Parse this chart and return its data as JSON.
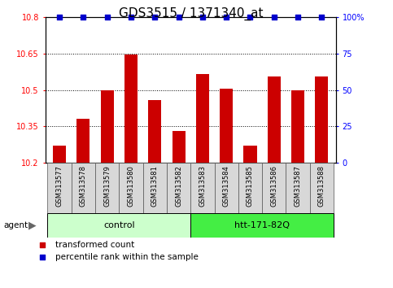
{
  "title": "GDS3515 / 1371340_at",
  "samples": [
    "GSM313577",
    "GSM313578",
    "GSM313579",
    "GSM313580",
    "GSM313581",
    "GSM313582",
    "GSM313583",
    "GSM313584",
    "GSM313585",
    "GSM313586",
    "GSM313587",
    "GSM313588"
  ],
  "bar_values": [
    10.27,
    10.38,
    10.5,
    10.645,
    10.46,
    10.33,
    10.565,
    10.505,
    10.27,
    10.555,
    10.5,
    10.555
  ],
  "percentile_values": [
    100,
    100,
    100,
    100,
    100,
    100,
    100,
    100,
    100,
    100,
    100,
    100
  ],
  "bar_color": "#cc0000",
  "percentile_color": "#0000cc",
  "ylim_left": [
    10.2,
    10.8
  ],
  "ylim_right": [
    0,
    100
  ],
  "yticks_left": [
    10.2,
    10.35,
    10.5,
    10.65,
    10.8
  ],
  "ytick_labels_left": [
    "10.2",
    "10.35",
    "10.5",
    "10.65",
    "10.8"
  ],
  "yticks_right": [
    0,
    25,
    50,
    75,
    100
  ],
  "ytick_labels_right": [
    "0",
    "25",
    "50",
    "75",
    "100%"
  ],
  "grid_yticks": [
    10.35,
    10.5,
    10.65
  ],
  "groups": [
    {
      "label": "control",
      "start": 0,
      "end": 5,
      "color": "#ccffcc"
    },
    {
      "label": "htt-171-82Q",
      "start": 6,
      "end": 11,
      "color": "#44ee44"
    }
  ],
  "agent_label": "agent",
  "legend_items": [
    {
      "label": "transformed count",
      "color": "#cc0000"
    },
    {
      "label": "percentile rank within the sample",
      "color": "#0000cc"
    }
  ],
  "bar_width": 0.55,
  "background_color": "#ffffff",
  "panel_bg": "#d8d8d8",
  "title_fontsize": 11,
  "tick_fontsize": 7,
  "label_fontsize": 8
}
